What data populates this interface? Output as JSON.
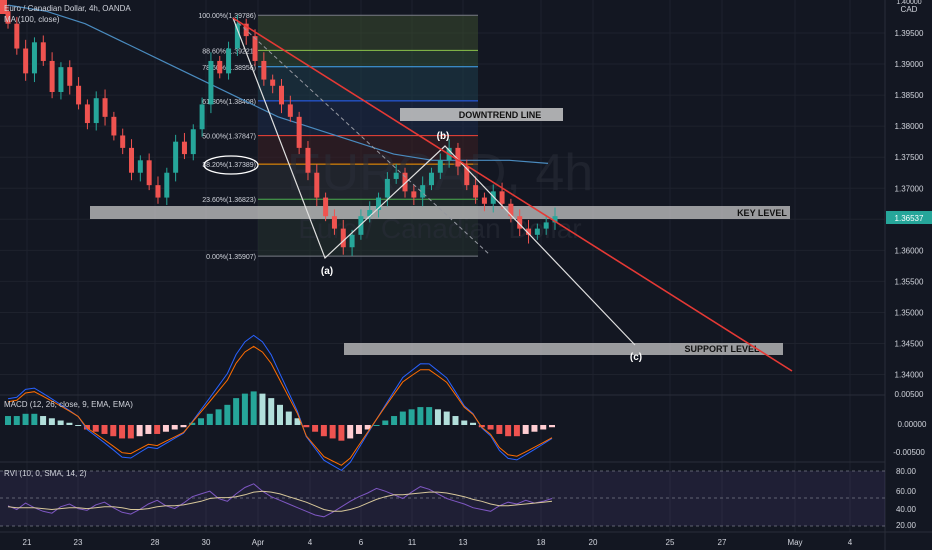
{
  "header": {
    "symbol_line": "Euro / Canadian Dollar, 4h, OANDA",
    "ma_line": "MA (100, close)"
  },
  "watermark": {
    "ticker": "EURCAD, 4h",
    "name": "Euro / Canadian Dollar"
  },
  "price_axis": {
    "currency": "CAD",
    "ticks": [
      "1.39500",
      "1.39000",
      "1.38500",
      "1.38000",
      "1.37500",
      "1.37000",
      "1.36500",
      "1.36000",
      "1.35500",
      "1.35000",
      "1.34500",
      "1.34000"
    ],
    "current_price": "1.36537"
  },
  "time_axis": {
    "labels": [
      "21",
      "23",
      "28",
      "30",
      "Apr",
      "4",
      "6",
      "11",
      "13",
      "18",
      "20",
      "25",
      "27",
      "May",
      "4"
    ]
  },
  "fib_levels": [
    {
      "label": "100.00%(1.39786)",
      "price": 1.39786,
      "color": "#787b86",
      "fill": "#3b4a2e"
    },
    {
      "label": "88.60%(1.39221)",
      "price": 1.39221,
      "color": "#8bc34a",
      "fill": "#2f4a33"
    },
    {
      "label": "78.60%(1.38956)",
      "price": 1.38956,
      "color": "#42a5f5",
      "fill": "#1e3c4a"
    },
    {
      "label": "61.80%(1.38408)",
      "price": 1.38408,
      "color": "#2962ff",
      "fill": "#1b2a48"
    },
    {
      "label": "50.00%(1.37847)",
      "price": 1.37847,
      "color": "#f44336",
      "fill": "#3d1f22"
    },
    {
      "label": "38.20%(1.37389)",
      "price": 1.37389,
      "color": "#ff9800",
      "fill": "#2b2f35"
    },
    {
      "label": "23.60%(1.36823)",
      "price": 1.36823,
      "color": "#4caf50",
      "fill": "#25312e"
    },
    {
      "label": "0.00%(1.35907)",
      "price": 1.35907,
      "color": "#787b86",
      "fill": null
    }
  ],
  "annotations": {
    "downtrend_line": "DOWNTREND LINE",
    "key_level": "KEY LEVEL",
    "support_level": "SUPPORT LEVEL",
    "wave_a": "(a)",
    "wave_b": "(b)",
    "wave_c": "(c)"
  },
  "macd": {
    "title": "MACD (12, 26, close, 9, EMA, EMA)",
    "ticks": [
      "0.00000",
      "-0.00500"
    ]
  },
  "rvi": {
    "title": "RVI (10, 0, SMA, 14, 2)",
    "ticks": [
      "80.00",
      "60.00",
      "40.00",
      "20.00"
    ]
  },
  "colors": {
    "background": "#131722",
    "bull": "#26a69a",
    "bear": "#ef5350",
    "trendline": "#e53935",
    "ma": "#4a8bbf",
    "price_tag": "#26a69a"
  },
  "chart_data": [
    {
      "type": "candlestick",
      "symbol": "EURCAD",
      "timeframe": "4h",
      "ylim": [
        1.3385,
        1.4005
      ],
      "series": [
        {
          "name": "close",
          "values": [
            1.3965,
            1.3925,
            1.3885,
            1.3935,
            1.3905,
            1.3855,
            1.3895,
            1.3865,
            1.3835,
            1.3805,
            1.3845,
            1.3815,
            1.3785,
            1.3765,
            1.3725,
            1.3745,
            1.3705,
            1.3685,
            1.3725,
            1.3775,
            1.3755,
            1.3795,
            1.3835,
            1.3905,
            1.3885,
            1.3925,
            1.3965,
            1.3945,
            1.3905,
            1.3875,
            1.3865,
            1.3835,
            1.3815,
            1.3765,
            1.3725,
            1.3685,
            1.3655,
            1.3635,
            1.3605,
            1.3625,
            1.3655,
            1.3665,
            1.3685,
            1.3715,
            1.3725,
            1.3695,
            1.3685,
            1.3705,
            1.3725,
            1.3745,
            1.3765,
            1.3735,
            1.3705,
            1.3685,
            1.3675,
            1.3695,
            1.3675,
            1.3655,
            1.3635,
            1.3625,
            1.3635,
            1.3645,
            1.3655
          ]
        },
        {
          "name": "MA (100, close)",
          "values": [
            1.3995,
            1.3985,
            1.3965,
            1.3935,
            1.3905,
            1.3875,
            1.3845,
            1.3815,
            1.3795,
            1.3775,
            1.3755,
            1.3745,
            1.3745,
            1.3745,
            1.374
          ]
        }
      ]
    },
    {
      "type": "bar",
      "title": "MACD (12, 26, close, 9, EMA, EMA)",
      "ylim": [
        -0.0065,
        0.0035
      ],
      "series": [
        {
          "name": "histogram",
          "values": [
            0.0004,
            0.0004,
            0.0005,
            0.0005,
            0.0004,
            0.0003,
            0.0002,
            0.0001,
            0.0,
            -0.0002,
            -0.0003,
            -0.0004,
            -0.0005,
            -0.0006,
            -0.0006,
            -0.0005,
            -0.0004,
            -0.0004,
            -0.0003,
            -0.0002,
            -0.0001,
            0.0001,
            0.0003,
            0.0005,
            0.0007,
            0.0009,
            0.0012,
            0.0014,
            0.0015,
            0.0014,
            0.0012,
            0.0009,
            0.0006,
            0.0003,
            -0.0001,
            -0.0003,
            -0.0005,
            -0.0006,
            -0.0007,
            -0.0006,
            -0.0004,
            -0.0002,
            0.0,
            0.0002,
            0.0004,
            0.0006,
            0.0007,
            0.0008,
            0.0008,
            0.0007,
            0.0006,
            0.0004,
            0.0002,
            0.0001,
            -0.0001,
            -0.0002,
            -0.0004,
            -0.0005,
            -0.0005,
            -0.0004,
            -0.0003,
            -0.0002,
            -0.0001
          ]
        }
      ]
    },
    {
      "type": "line",
      "title": "RVI (10, 0, SMA, 14, 2)",
      "ylim": [
        10,
        90
      ],
      "series": [
        {
          "name": "RVI",
          "values": [
            42,
            38,
            45,
            40,
            36,
            34,
            41,
            44,
            39,
            37,
            43,
            46,
            40,
            35,
            33,
            38,
            44,
            48,
            42,
            39,
            45,
            52,
            55,
            58,
            50,
            47,
            55,
            62,
            66,
            58,
            52,
            48,
            44,
            40,
            36,
            32,
            30,
            35,
            41,
            47,
            52,
            56,
            61,
            58,
            54,
            50,
            57,
            63,
            60,
            55,
            50,
            47,
            44,
            40,
            38,
            36,
            42,
            46,
            44,
            48,
            45,
            47,
            50
          ]
        },
        {
          "name": "signal",
          "values": [
            41,
            40,
            40,
            40,
            39,
            38,
            39,
            40,
            40,
            39,
            40,
            41,
            41,
            40,
            38,
            38,
            39,
            41,
            42,
            42,
            43,
            45,
            47,
            50,
            51,
            51,
            52,
            54,
            57,
            58,
            57,
            55,
            52,
            49,
            46,
            42,
            38,
            36,
            36,
            38,
            41,
            45,
            49,
            52,
            54,
            54,
            55,
            56,
            57,
            57,
            56,
            54,
            52,
            49,
            47,
            44,
            42,
            42,
            43,
            44,
            45,
            46,
            47
          ]
        }
      ]
    }
  ]
}
